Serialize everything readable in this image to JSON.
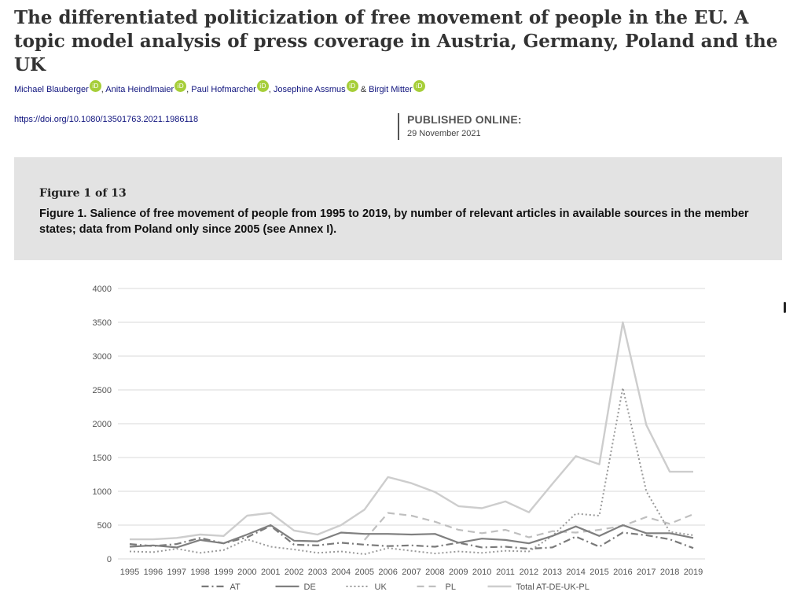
{
  "article": {
    "title": "The differentiated politicization of free movement of people in the EU. A topic model analysis of press coverage in Austria, Germany, Poland and the UK",
    "authors": [
      {
        "name": "Michael Blauberger",
        "sep": ", "
      },
      {
        "name": "Anita Heindlmaier",
        "sep": ", "
      },
      {
        "name": "Paul Hofmarcher",
        "sep": ", "
      },
      {
        "name": "Josephine Assmus",
        "sep": " & "
      },
      {
        "name": "Birgit Mitter",
        "sep": ""
      }
    ],
    "orcid_icon_text": "iD",
    "doi": "https://doi.org/10.1080/13501763.2021.1986118",
    "published_label": "PUBLISHED ONLINE:",
    "published_date": "29 November 2021"
  },
  "figure": {
    "counter": "Figure 1 of 13",
    "caption": "Figure 1. Salience of free movement of people from 1995 to 2019, by number of relevant articles in available sources in the member states; data from Poland only since 2005 (see Annex I)."
  },
  "colors": {
    "AT": "#7a7a7a",
    "DE": "#7f7f7f",
    "UK": "#9a9a9a",
    "PL": "#bfbfbf",
    "Total": "#cdcdcd",
    "grid": "#d9d9d9",
    "axis_text": "#555555"
  },
  "chart_data": {
    "type": "line",
    "title": "",
    "xlabel": "",
    "ylabel": "",
    "ylim": [
      0,
      4000
    ],
    "yticks": [
      0,
      500,
      1000,
      1500,
      2000,
      2500,
      3000,
      3500,
      4000
    ],
    "grid": true,
    "legend_position": "bottom",
    "x": [
      "1995",
      "1996",
      "1997",
      "1998",
      "1999",
      "2000",
      "2001",
      "2002",
      "2003",
      "2004",
      "2005",
      "2006",
      "2007",
      "2008",
      "2009",
      "2010",
      "2011",
      "2012",
      "2013",
      "2014",
      "2015",
      "2016",
      "2017",
      "2018",
      "2019"
    ],
    "series": [
      {
        "name": "AT",
        "dash": "dashdot",
        "values": [
          220,
          190,
          220,
          310,
          230,
          320,
          490,
          210,
          200,
          240,
          210,
          190,
          200,
          180,
          240,
          170,
          180,
          150,
          170,
          330,
          180,
          390,
          350,
          290,
          160
        ]
      },
      {
        "name": "DE",
        "dash": "solid",
        "values": [
          180,
          200,
          170,
          280,
          230,
          360,
          500,
          270,
          260,
          390,
          370,
          370,
          360,
          370,
          240,
          300,
          280,
          230,
          340,
          480,
          340,
          500,
          380,
          380,
          310
        ]
      },
      {
        "name": "UK",
        "dash": "dotted",
        "values": [
          110,
          100,
          150,
          90,
          130,
          290,
          180,
          140,
          90,
          110,
          70,
          160,
          120,
          80,
          110,
          90,
          120,
          110,
          340,
          670,
          640,
          2530,
          1000,
          400,
          350
        ]
      },
      {
        "name": "PL",
        "dash": "dashed",
        "values": [
          null,
          null,
          null,
          null,
          null,
          null,
          null,
          null,
          null,
          null,
          280,
          680,
          640,
          550,
          430,
          380,
          430,
          320,
          410,
          390,
          430,
          490,
          620,
          520,
          660
        ]
      },
      {
        "name": "Total AT-DE-UK-PL",
        "dash": "solid-light",
        "values": [
          290,
          290,
          310,
          360,
          340,
          640,
          680,
          420,
          360,
          500,
          730,
          1210,
          1120,
          990,
          780,
          750,
          850,
          690,
          1110,
          1520,
          1400,
          3500,
          1980,
          1290,
          1290
        ]
      }
    ]
  }
}
